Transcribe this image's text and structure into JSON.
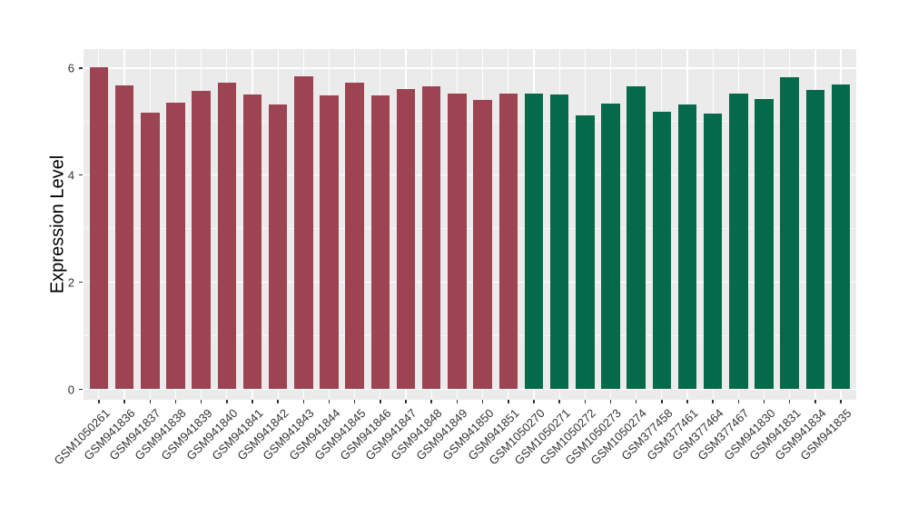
{
  "figure": {
    "panel_background": "#EBEBEB",
    "grid_color": "#FFFFFF",
    "tick_color": "#333333",
    "axis_text_color": "#333333",
    "group_colors": {
      "left_group_red": "#9C4452",
      "right_group_green": "#056A49"
    }
  },
  "chart_data": {
    "type": "bar",
    "ylabel": "Expression Level",
    "xlabel": "",
    "legend_position": "none",
    "grid": true,
    "ylim": [
      0,
      6.35
    ],
    "yticks": [
      0,
      2,
      4,
      6
    ],
    "yticks_minor": [
      1,
      3,
      5
    ],
    "x_label_rotation_deg": -45,
    "categories": [
      "GSM1050261",
      "GSM941836",
      "GSM941837",
      "GSM941838",
      "GSM941839",
      "GSM941840",
      "GSM941841",
      "GSM941842",
      "GSM941843",
      "GSM941844",
      "GSM941845",
      "GSM941846",
      "GSM941847",
      "GSM941848",
      "GSM941849",
      "GSM941850",
      "GSM941851",
      "GSM1050270",
      "GSM1050271",
      "GSM1050272",
      "GSM1050273",
      "GSM1050274",
      "GSM377458",
      "GSM377461",
      "GSM377464",
      "GSM377467",
      "GSM941830",
      "GSM941831",
      "GSM941834",
      "GSM941835"
    ],
    "values": [
      6.01,
      5.68,
      5.16,
      5.35,
      5.57,
      5.72,
      5.51,
      5.31,
      5.84,
      5.49,
      5.72,
      5.49,
      5.6,
      5.66,
      5.52,
      5.41,
      5.53,
      5.53,
      5.5,
      5.12,
      5.34,
      5.65,
      5.18,
      5.32,
      5.14,
      5.52,
      5.42,
      5.83,
      5.59,
      5.69
    ],
    "colors": [
      "#9C4452",
      "#9C4452",
      "#9C4452",
      "#9C4452",
      "#9C4452",
      "#9C4452",
      "#9C4452",
      "#9C4452",
      "#9C4452",
      "#9C4452",
      "#9C4452",
      "#9C4452",
      "#9C4452",
      "#9C4452",
      "#9C4452",
      "#9C4452",
      "#9C4452",
      "#056A49",
      "#056A49",
      "#056A49",
      "#056A49",
      "#056A49",
      "#056A49",
      "#056A49",
      "#056A49",
      "#056A49",
      "#056A49",
      "#056A49",
      "#056A49",
      "#056A49"
    ]
  }
}
